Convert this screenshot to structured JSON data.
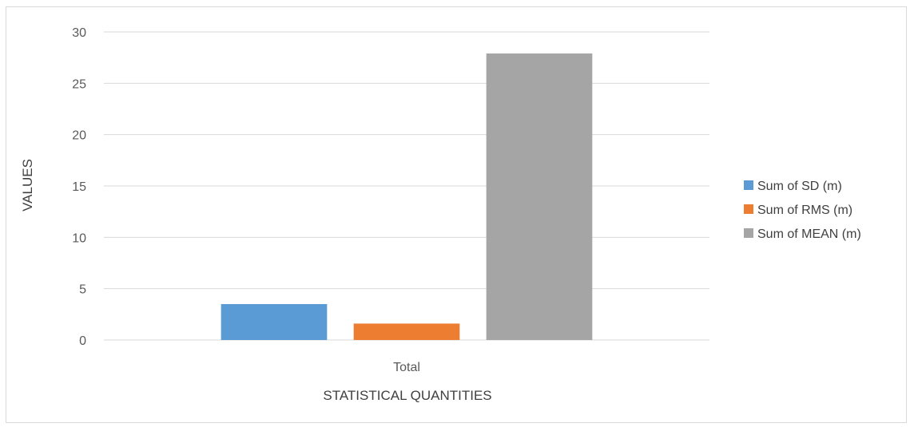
{
  "chart_data": {
    "type": "bar",
    "categories": [
      "Total"
    ],
    "series": [
      {
        "name": "Sum of SD (m)",
        "values": [
          3.5
        ],
        "color": "#5b9bd5"
      },
      {
        "name": "Sum of RMS (m)",
        "values": [
          1.6
        ],
        "color": "#ed7d31"
      },
      {
        "name": "Sum of MEAN (m)",
        "values": [
          27.9
        ],
        "color": "#a5a5a5"
      }
    ],
    "xlabel": "STATISTICAL QUANTITIES",
    "ylabel": "VALUES",
    "ylim": [
      0,
      30
    ],
    "yticks": [
      0,
      5,
      10,
      15,
      20,
      25,
      30
    ],
    "grid": true,
    "legend_position": "right",
    "gridline_color": "#d9d9d9"
  }
}
